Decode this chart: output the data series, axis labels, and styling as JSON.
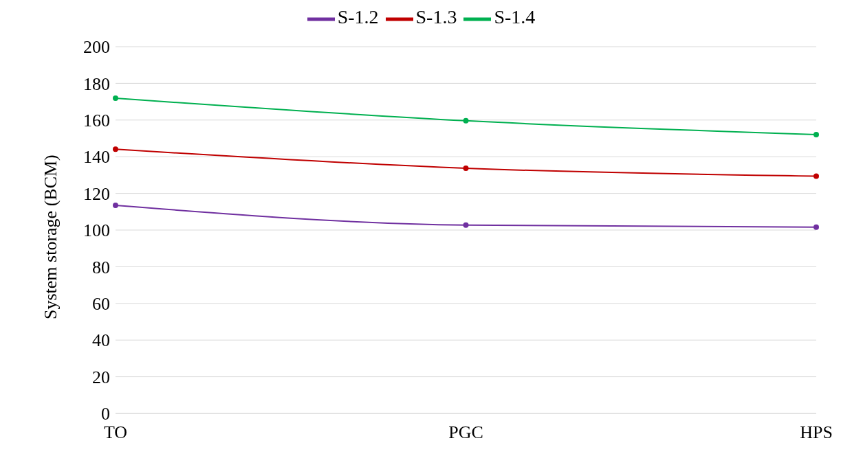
{
  "chart_data": {
    "type": "line",
    "ylabel": "System storage (BCM)",
    "categories": [
      "TO",
      "PGC",
      "HPS"
    ],
    "series": [
      {
        "name": "S-1.2",
        "color": "#7030a0",
        "values": [
          113.5,
          102.7,
          101.6
        ]
      },
      {
        "name": "S-1.3",
        "color": "#c00000",
        "values": [
          144.1,
          133.7,
          129.4
        ]
      },
      {
        "name": "S-1.4",
        "color": "#00b050",
        "values": [
          171.9,
          159.6,
          152.1
        ]
      }
    ],
    "ylim": [
      0,
      200
    ],
    "yticks": [
      0,
      20,
      40,
      60,
      80,
      100,
      120,
      140,
      160,
      180,
      200
    ],
    "grid": "y",
    "legend": "top",
    "marker": "circle",
    "line_style": "solid"
  }
}
